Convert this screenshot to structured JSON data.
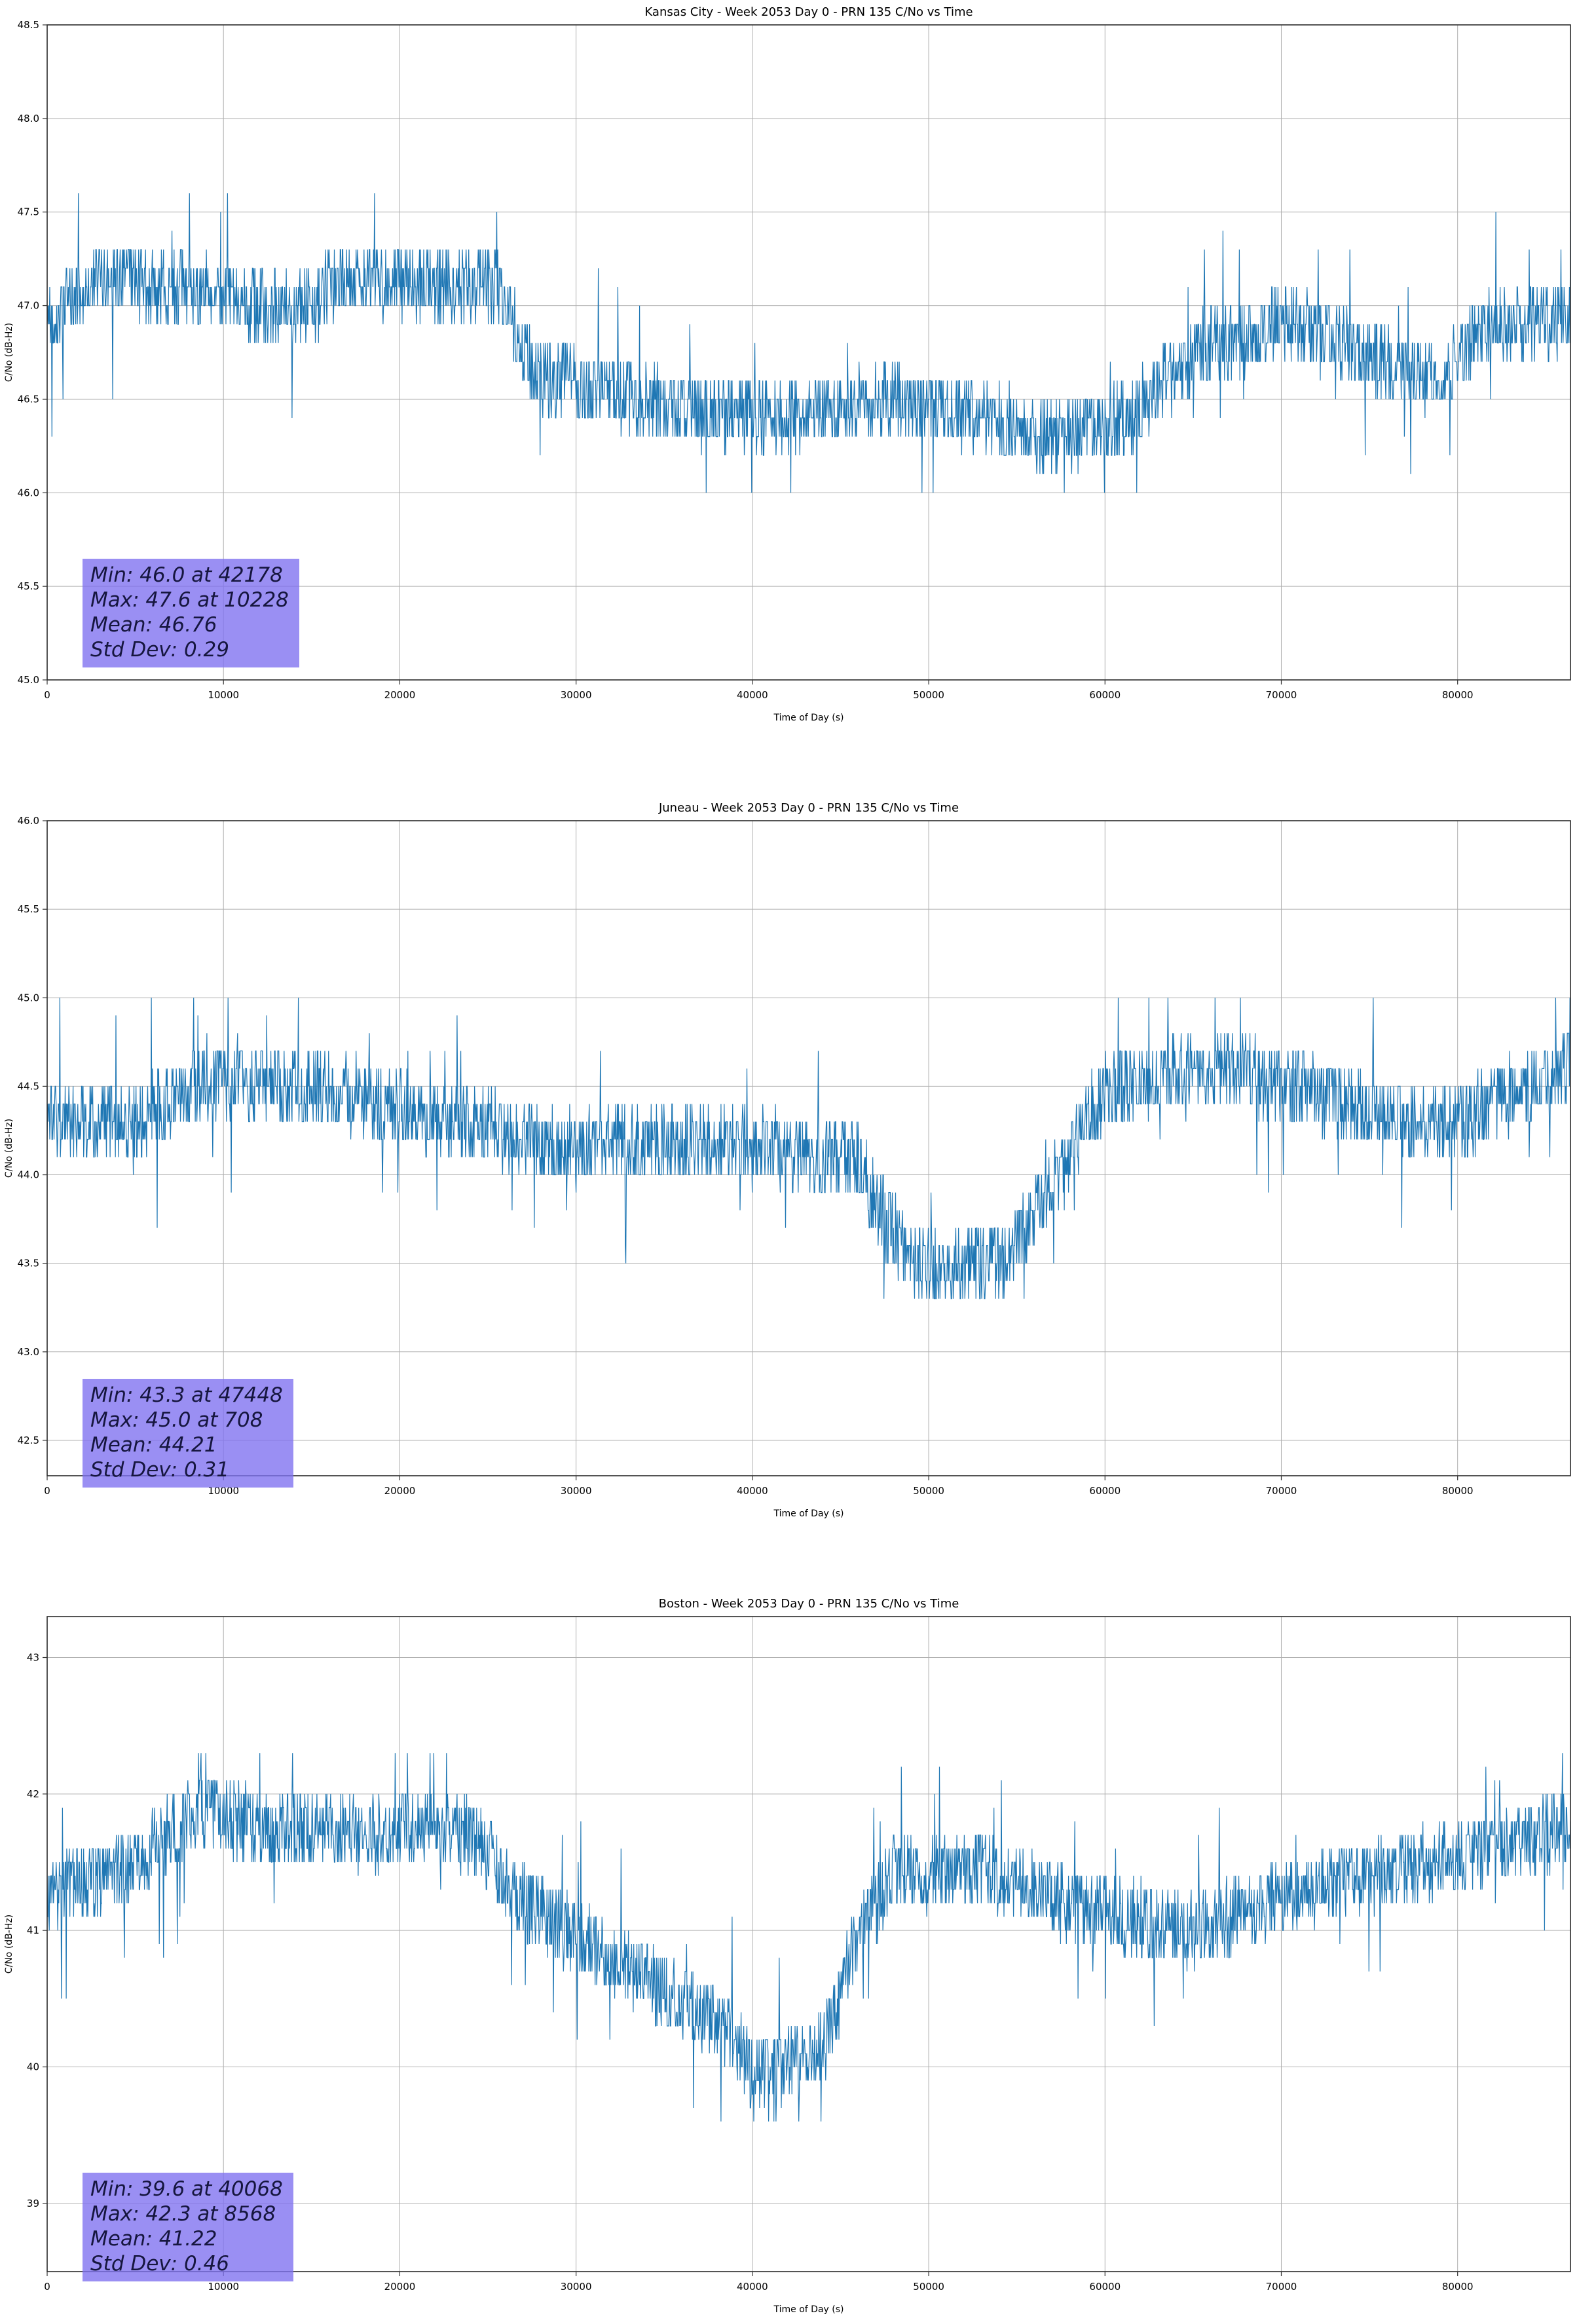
{
  "style": {
    "background": "#ffffff",
    "grid_color": "#b0b0b0",
    "spine_color": "#2a2a2a",
    "tick_color": "#333333",
    "text_color": "#000000",
    "annotation_bg": "#7d70f0",
    "annotation_opacity": 0.78,
    "annotation_text_color": "#16163f"
  },
  "chart_data": [
    {
      "id": "kansas-city",
      "type": "line",
      "title": "Kansas City - Week 2053 Day 0 - PRN 135 C/No vs Time",
      "xlabel": "Time of Day (s)",
      "ylabel": "C/No (dB-Hz)",
      "xlim": [
        0,
        86400
      ],
      "ylim": [
        45.0,
        48.5
      ],
      "xticks": [
        0,
        10000,
        20000,
        30000,
        40000,
        50000,
        60000,
        70000,
        80000
      ],
      "xtick_labels": [
        "0",
        "10000",
        "20000",
        "30000",
        "40000",
        "50000",
        "60000",
        "70000",
        "80000"
      ],
      "yticks": [
        45.0,
        45.5,
        46.0,
        46.5,
        47.0,
        47.5,
        48.0,
        48.5
      ],
      "ytick_labels": [
        "45.0",
        "45.5",
        "46.0",
        "46.5",
        "47.0",
        "47.5",
        "48.0",
        "48.5"
      ],
      "grid": true,
      "line_color": "#1f77b4",
      "stats": {
        "min": 46.0,
        "min_time": 42178,
        "max": 47.6,
        "max_time": 10228,
        "mean": 46.76,
        "std_dev": 0.29
      },
      "annotation_lines": [
        "Min: 46.0 at 42178",
        "Max: 47.6 at 10228",
        "Mean: 46.76",
        "Std Dev: 0.29"
      ],
      "sample_interval_s": 30,
      "quantize_step": 0.1,
      "noise_amp": 0.2,
      "spike_prob": 0.02,
      "seed": 42,
      "profile": [
        [
          0,
          46.9
        ],
        [
          3000,
          47.15
        ],
        [
          11000,
          47.05
        ],
        [
          14000,
          46.95
        ],
        [
          17000,
          47.15
        ],
        [
          25500,
          47.1
        ],
        [
          27500,
          46.65
        ],
        [
          35500,
          46.45
        ],
        [
          42300,
          46.4
        ],
        [
          47500,
          46.5
        ],
        [
          51500,
          46.45
        ],
        [
          56500,
          46.3
        ],
        [
          61500,
          46.4
        ],
        [
          65000,
          46.75
        ],
        [
          70000,
          46.9
        ],
        [
          73500,
          46.8
        ],
        [
          78500,
          46.6
        ],
        [
          82000,
          46.9
        ],
        [
          86400,
          46.95
        ]
      ]
    },
    {
      "id": "juneau",
      "type": "line",
      "title": "Juneau - Week 2053 Day 0 - PRN 135 C/No vs Time",
      "xlabel": "Time of Day (s)",
      "ylabel": "C/No (dB-Hz)",
      "xlim": [
        0,
        86400
      ],
      "ylim": [
        42.3,
        46.0
      ],
      "xticks": [
        0,
        10000,
        20000,
        30000,
        40000,
        50000,
        60000,
        70000,
        80000
      ],
      "xtick_labels": [
        "0",
        "10000",
        "20000",
        "30000",
        "40000",
        "50000",
        "60000",
        "70000",
        "80000"
      ],
      "yticks": [
        42.5,
        43.0,
        43.5,
        44.0,
        44.5,
        45.0,
        45.5,
        46.0
      ],
      "ytick_labels": [
        "42.5",
        "43.0",
        "43.5",
        "44.0",
        "44.5",
        "45.0",
        "45.5",
        "46.0"
      ],
      "grid": true,
      "line_color": "#1f77b4",
      "stats": {
        "min": 43.3,
        "min_time": 47448,
        "max": 45.0,
        "max_time": 708,
        "mean": 44.21,
        "std_dev": 0.31
      },
      "annotation_lines": [
        "Min: 43.3 at 47448",
        "Max: 45.0 at 708",
        "Mean: 44.21",
        "Std Dev: 0.31"
      ],
      "sample_interval_s": 30,
      "quantize_step": 0.1,
      "noise_amp": 0.22,
      "spike_prob": 0.02,
      "seed": 1337,
      "profile": [
        [
          0,
          44.35
        ],
        [
          5000,
          44.3
        ],
        [
          9000,
          44.55
        ],
        [
          15000,
          44.5
        ],
        [
          24000,
          44.3
        ],
        [
          30000,
          44.15
        ],
        [
          36000,
          44.2
        ],
        [
          46000,
          44.1
        ],
        [
          47400,
          43.75
        ],
        [
          50000,
          43.45
        ],
        [
          54500,
          43.55
        ],
        [
          57500,
          44.0
        ],
        [
          60000,
          44.5
        ],
        [
          67000,
          44.6
        ],
        [
          72000,
          44.45
        ],
        [
          79000,
          44.25
        ],
        [
          84000,
          44.5
        ],
        [
          86400,
          44.6
        ]
      ]
    },
    {
      "id": "boston",
      "type": "line",
      "title": "Boston - Week 2053 Day 0 - PRN 135 C/No vs Time",
      "xlabel": "Time of Day (s)",
      "ylabel": "C/No (dB-Hz)",
      "xlim": [
        0,
        86400
      ],
      "ylim": [
        38.5,
        43.3
      ],
      "xticks": [
        0,
        10000,
        20000,
        30000,
        40000,
        50000,
        60000,
        70000,
        80000
      ],
      "xtick_labels": [
        "0",
        "10000",
        "20000",
        "30000",
        "40000",
        "50000",
        "60000",
        "70000",
        "80000"
      ],
      "yticks": [
        39,
        40,
        41,
        42,
        43
      ],
      "ytick_labels": [
        "39",
        "40",
        "41",
        "42",
        "43"
      ],
      "grid": true,
      "line_color": "#1f77b4",
      "stats": {
        "min": 39.6,
        "min_time": 40068,
        "max": 42.3,
        "max_time": 8568,
        "mean": 41.22,
        "std_dev": 0.46
      },
      "annotation_lines": [
        "Min: 39.6 at 40068",
        "Max: 42.3 at 8568",
        "Mean: 41.22",
        "Std Dev: 0.46"
      ],
      "sample_interval_s": 30,
      "quantize_step": 0.1,
      "noise_amp": 0.28,
      "spike_prob": 0.02,
      "seed": 2053,
      "profile": [
        [
          0,
          41.3
        ],
        [
          4000,
          41.4
        ],
        [
          8600,
          41.9
        ],
        [
          12000,
          41.75
        ],
        [
          24000,
          41.7
        ],
        [
          27000,
          41.2
        ],
        [
          31000,
          40.9
        ],
        [
          35000,
          40.55
        ],
        [
          38500,
          40.3
        ],
        [
          40100,
          39.95
        ],
        [
          44000,
          40.1
        ],
        [
          46000,
          41.0
        ],
        [
          48000,
          41.4
        ],
        [
          53000,
          41.45
        ],
        [
          58000,
          41.2
        ],
        [
          65000,
          41.0
        ],
        [
          70000,
          41.25
        ],
        [
          75000,
          41.4
        ],
        [
          82000,
          41.6
        ],
        [
          86400,
          41.75
        ]
      ]
    }
  ]
}
